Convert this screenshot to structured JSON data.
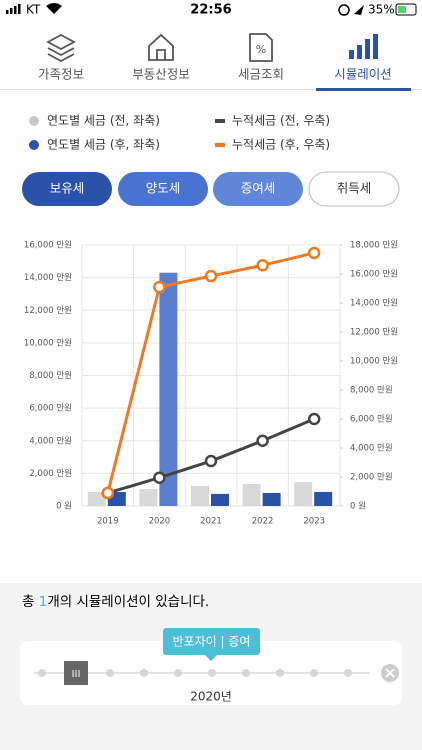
{
  "status_bar": {
    "carrier": "KT",
    "time": "22:56",
    "battery": "35%"
  },
  "tabs": [
    "가족정보",
    "부동산정보",
    "세금조회",
    "시뮬레이션"
  ],
  "buttons": [
    "보유세",
    "양도세",
    "증여세",
    "취득세"
  ],
  "chart_data": {
    "type": "bar_line",
    "categories": [
      "2019",
      "2020",
      "2021",
      "2022",
      "2023"
    ],
    "series": [
      {
        "name": "연도별 세금 (전, 좌축)",
        "type": "bar",
        "color": "#d9d9d9",
        "values": [
          860,
          1040,
          1230,
          1350,
          1470
        ]
      },
      {
        "name": "연도별 세금 (후, 좌축)",
        "type": "bar",
        "color": "#2a52a8",
        "colors": [
          "#2a52a8",
          "#5b7fcf",
          "#2a52a8",
          "#2a52a8",
          "#2a52a8"
        ],
        "values": [
          860,
          14300,
          740,
          800,
          860
        ]
      },
      {
        "name": "누적세금 (전, 우축)",
        "type": "line",
        "axis": "y2",
        "color": "#454545",
        "values": [
          900,
          1950,
          3100,
          4500,
          6000
        ]
      },
      {
        "name": "누적세금 (후, 우축)",
        "type": "line",
        "axis": "y2",
        "color": "#f07a22",
        "values": [
          900,
          15100,
          15860,
          16600,
          17450
        ]
      }
    ],
    "ylim": [
      0,
      16000
    ],
    "yticks": [
      {
        "value": 0,
        "label": "0 원"
      },
      {
        "value": 2000,
        "label": "2,000 만원"
      },
      {
        "value": 4000,
        "label": "4,000 만원"
      },
      {
        "value": 6000,
        "label": "6,000 만원"
      },
      {
        "value": 8000,
        "label": "8,000 만원"
      },
      {
        "value": 10000,
        "label": "10,000 만원"
      },
      {
        "value": 12000,
        "label": "12,000 만원"
      },
      {
        "value": 14000,
        "label": "14,000 만원"
      },
      {
        "value": 16000,
        "label": "16,000 만원"
      }
    ],
    "y2lim": [
      0,
      18000
    ],
    "y2ticks": [
      {
        "value": 0,
        "label": "0 원"
      },
      {
        "value": 2000,
        "label": "2,000 만원"
      },
      {
        "value": 4000,
        "label": "4,000 만원"
      },
      {
        "value": 6000,
        "label": "6,000 만원"
      },
      {
        "value": 8000,
        "label": "8,000 만원"
      },
      {
        "value": 10000,
        "label": "10,000 만원"
      },
      {
        "value": 12000,
        "label": "12,000 만원"
      },
      {
        "value": 14000,
        "label": "14,000 만원"
      },
      {
        "value": 16000,
        "label": "16,000 만원"
      },
      {
        "value": 18000,
        "label": "18,000 만원"
      }
    ],
    "grid": true
  },
  "simulation": {
    "summary": [
      "총 ",
      "1",
      "개의 시뮬레이션이 있습니다."
    ],
    "tooltip": "반포자이 | 증여",
    "handle": "III",
    "year": "2020년"
  }
}
